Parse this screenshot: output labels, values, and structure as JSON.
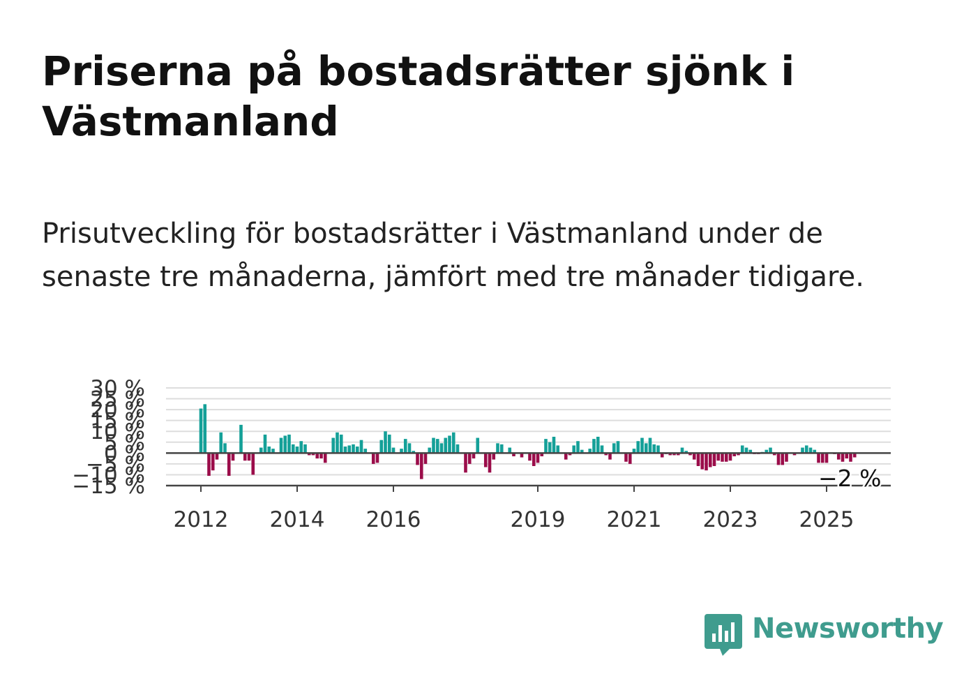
{
  "title": "Priserna på bostadsrätter sjönk i Västmanland",
  "subtitle": "Prisutveckling för bostadsrätter i Västmanland under de senaste tre månaderna, jämfört med tre månader tidigare.",
  "brand": {
    "name": "Newsworthy",
    "icon": "bar-chart-bubble-icon",
    "color": "#3f9c8e"
  },
  "colors": {
    "positive": "#14a098",
    "negative": "#9b0d4a",
    "zero_line": "#444444",
    "grid": "#dddddd",
    "axis_text": "#333333"
  },
  "chart_data": {
    "type": "bar",
    "title": "",
    "xlabel": "",
    "ylabel": "",
    "ylim": [
      -15,
      30
    ],
    "y_ticks": [
      {
        "value": 30,
        "label": "30 %"
      },
      {
        "value": 25,
        "label": "25 %"
      },
      {
        "value": 20,
        "label": "20 %"
      },
      {
        "value": 15,
        "label": "15 %"
      },
      {
        "value": 10,
        "label": "10 %"
      },
      {
        "value": 5,
        "label": "5 %"
      },
      {
        "value": 0,
        "label": "0 %"
      },
      {
        "value": -5,
        "label": "−5 %"
      },
      {
        "value": -10,
        "label": "−10 %"
      },
      {
        "value": -15,
        "label": "−15 %"
      }
    ],
    "x_ticks": [
      {
        "value": "2012-01",
        "label": "2012"
      },
      {
        "value": "2014-01",
        "label": "2014"
      },
      {
        "value": "2016-01",
        "label": "2016"
      },
      {
        "value": "2019-01",
        "label": "2019"
      },
      {
        "value": "2021-01",
        "label": "2021"
      },
      {
        "value": "2023-01",
        "label": "2023"
      },
      {
        "value": "2025-01",
        "label": "2025"
      }
    ],
    "grid": true,
    "annotation": {
      "x": "2025-07",
      "text": "−2 %"
    },
    "points": [
      [
        "2012-01",
        20.5
      ],
      [
        "2012-02",
        22.5
      ],
      [
        "2012-03",
        -10.5
      ],
      [
        "2012-04",
        -8.0
      ],
      [
        "2012-05",
        -3.0
      ],
      [
        "2012-06",
        9.5
      ],
      [
        "2012-07",
        4.5
      ],
      [
        "2012-08",
        -10.5
      ],
      [
        "2012-09",
        -3.5
      ],
      [
        "2012-11",
        13.0
      ],
      [
        "2012-12",
        -3.5
      ],
      [
        "2013-01",
        -3.5
      ],
      [
        "2013-02",
        -10.0
      ],
      [
        "2013-04",
        2.5
      ],
      [
        "2013-05",
        8.5
      ],
      [
        "2013-06",
        3.0
      ],
      [
        "2013-07",
        2.0
      ],
      [
        "2013-09",
        7.0
      ],
      [
        "2013-10",
        8.0
      ],
      [
        "2013-11",
        8.5
      ],
      [
        "2013-12",
        4.0
      ],
      [
        "2014-01",
        3.0
      ],
      [
        "2014-02",
        5.5
      ],
      [
        "2014-03",
        4.0
      ],
      [
        "2014-04",
        -1.0
      ],
      [
        "2014-05",
        -1.0
      ],
      [
        "2014-06",
        -2.5
      ],
      [
        "2014-07",
        -2.5
      ],
      [
        "2014-08",
        -4.5
      ],
      [
        "2014-10",
        7.0
      ],
      [
        "2014-11",
        9.5
      ],
      [
        "2014-12",
        8.5
      ],
      [
        "2015-01",
        3.0
      ],
      [
        "2015-02",
        3.5
      ],
      [
        "2015-03",
        4.0
      ],
      [
        "2015-04",
        3.0
      ],
      [
        "2015-05",
        6.0
      ],
      [
        "2015-06",
        2.0
      ],
      [
        "2015-08",
        -5.0
      ],
      [
        "2015-09",
        -4.5
      ],
      [
        "2015-10",
        6.0
      ],
      [
        "2015-11",
        10.0
      ],
      [
        "2015-12",
        8.5
      ],
      [
        "2016-01",
        2.5
      ],
      [
        "2016-03",
        2.0
      ],
      [
        "2016-04",
        6.5
      ],
      [
        "2016-05",
        4.5
      ],
      [
        "2016-06",
        1.0
      ],
      [
        "2016-07",
        -5.5
      ],
      [
        "2016-08",
        -12.0
      ],
      [
        "2016-09",
        -5.0
      ],
      [
        "2016-10",
        2.5
      ],
      [
        "2016-11",
        7.0
      ],
      [
        "2016-12",
        6.5
      ],
      [
        "2017-01",
        4.5
      ],
      [
        "2017-02",
        7.0
      ],
      [
        "2017-03",
        8.0
      ],
      [
        "2017-04",
        9.5
      ],
      [
        "2017-05",
        4.0
      ],
      [
        "2017-07",
        -9.0
      ],
      [
        "2017-08",
        -5.0
      ],
      [
        "2017-09",
        -2.5
      ],
      [
        "2017-10",
        7.0
      ],
      [
        "2017-12",
        -6.5
      ],
      [
        "2018-01",
        -9.0
      ],
      [
        "2018-02",
        -3.0
      ],
      [
        "2018-03",
        4.5
      ],
      [
        "2018-04",
        4.0
      ],
      [
        "2018-06",
        2.5
      ],
      [
        "2018-07",
        -1.5
      ],
      [
        "2018-09",
        -2.0
      ],
      [
        "2018-11",
        -3.5
      ],
      [
        "2018-12",
        -6.0
      ],
      [
        "2019-01",
        -4.5
      ],
      [
        "2019-02",
        -1.5
      ],
      [
        "2019-03",
        6.5
      ],
      [
        "2019-04",
        5.0
      ],
      [
        "2019-05",
        7.5
      ],
      [
        "2019-06",
        3.5
      ],
      [
        "2019-08",
        -3.0
      ],
      [
        "2019-09",
        -1.0
      ],
      [
        "2019-10",
        3.5
      ],
      [
        "2019-11",
        5.5
      ],
      [
        "2019-12",
        1.5
      ],
      [
        "2020-02",
        2.0
      ],
      [
        "2020-03",
        6.5
      ],
      [
        "2020-04",
        7.5
      ],
      [
        "2020-05",
        3.5
      ],
      [
        "2020-06",
        -1.0
      ],
      [
        "2020-07",
        -3.0
      ],
      [
        "2020-08",
        4.5
      ],
      [
        "2020-09",
        5.5
      ],
      [
        "2020-11",
        -4.0
      ],
      [
        "2020-12",
        -5.0
      ],
      [
        "2021-01",
        2.0
      ],
      [
        "2021-02",
        5.5
      ],
      [
        "2021-03",
        7.0
      ],
      [
        "2021-04",
        4.5
      ],
      [
        "2021-05",
        7.0
      ],
      [
        "2021-06",
        4.0
      ],
      [
        "2021-07",
        3.5
      ],
      [
        "2021-08",
        -2.0
      ],
      [
        "2021-09",
        -0.5
      ],
      [
        "2021-10",
        -1.0
      ],
      [
        "2021-11",
        -1.0
      ],
      [
        "2021-12",
        -1.0
      ],
      [
        "2022-01",
        2.5
      ],
      [
        "2022-02",
        1.0
      ],
      [
        "2022-03",
        -1.0
      ],
      [
        "2022-04",
        -3.0
      ],
      [
        "2022-05",
        -6.0
      ],
      [
        "2022-06",
        -7.5
      ],
      [
        "2022-07",
        -8.0
      ],
      [
        "2022-08",
        -6.5
      ],
      [
        "2022-09",
        -6.0
      ],
      [
        "2022-10",
        -3.5
      ],
      [
        "2022-11",
        -4.0
      ],
      [
        "2022-12",
        -4.0
      ],
      [
        "2023-01",
        -3.5
      ],
      [
        "2023-02",
        -1.5
      ],
      [
        "2023-03",
        -1.0
      ],
      [
        "2023-04",
        3.5
      ],
      [
        "2023-05",
        2.5
      ],
      [
        "2023-06",
        1.5
      ],
      [
        "2023-07",
        -0.5
      ],
      [
        "2023-08",
        -0.5
      ],
      [
        "2023-09",
        0.5
      ],
      [
        "2023-10",
        1.5
      ],
      [
        "2023-11",
        2.5
      ],
      [
        "2023-12",
        -1.0
      ],
      [
        "2024-01",
        -5.5
      ],
      [
        "2024-02",
        -5.5
      ],
      [
        "2024-03",
        -4.0
      ],
      [
        "2024-05",
        -1.0
      ],
      [
        "2024-07",
        2.5
      ],
      [
        "2024-08",
        3.5
      ],
      [
        "2024-09",
        2.5
      ],
      [
        "2024-10",
        1.5
      ],
      [
        "2024-11",
        -4.5
      ],
      [
        "2024-12",
        -4.5
      ],
      [
        "2025-01",
        -4.5
      ],
      [
        "2025-03",
        -0.5
      ],
      [
        "2025-04",
        -3.0
      ],
      [
        "2025-05",
        -4.0
      ],
      [
        "2025-06",
        -2.5
      ],
      [
        "2025-07",
        -4.0
      ],
      [
        "2025-08",
        -2.0
      ]
    ]
  }
}
